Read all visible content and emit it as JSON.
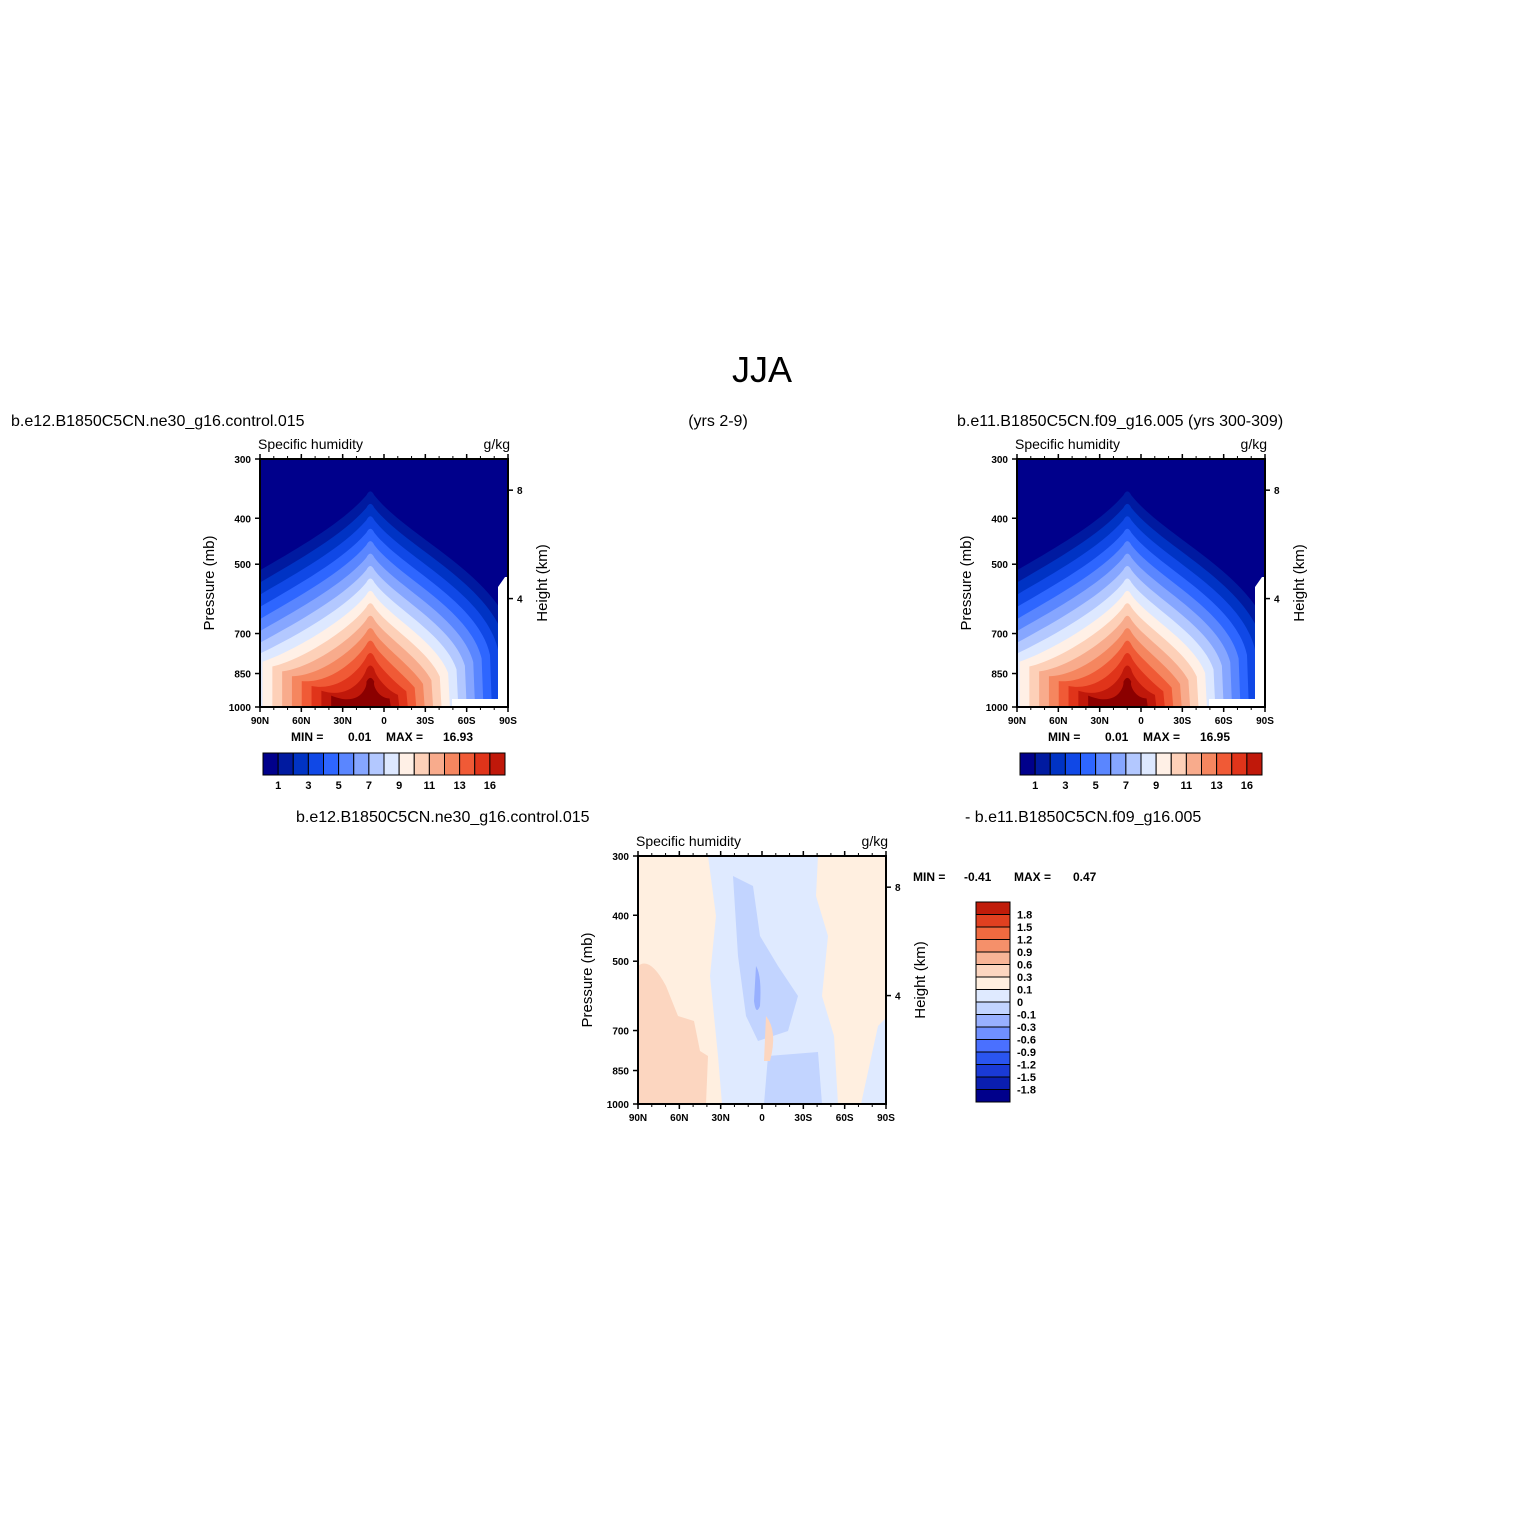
{
  "figure": {
    "title": "JJA",
    "top_left_label": "b.e12.B1850C5CN.ne30_g16.control.015",
    "top_center_label": "(yrs 2-9)",
    "top_right_label": "b.e11.B1850C5CN.f09_g16.005 (yrs 300-309)",
    "bottom_left_label": "b.e12.B1850C5CN.ne30_g16.control.015",
    "bottom_right_label": "- b.e11.B1850C5CN.f09_g16.005"
  },
  "colors": {
    "abs_palette": [
      "#00008b",
      "#001aa0",
      "#0033c4",
      "#1048e6",
      "#2e66ff",
      "#5a86ff",
      "#86a6ff",
      "#b3c8ff",
      "#dde8ff",
      "#fff0e6",
      "#fdd0b8",
      "#f8ab8c",
      "#f5865f",
      "#f05a36",
      "#e0341a",
      "#c0180a",
      "#8b0000"
    ],
    "diff_palette": [
      "#00008b",
      "#0a1eb0",
      "#1a3ad6",
      "#2a55f0",
      "#4a70ff",
      "#7090ff",
      "#98b0ff",
      "#c2d4ff",
      "#dfeaff",
      "#ffefe0",
      "#fcd6c0",
      "#f8b496",
      "#f5906a",
      "#f06a40",
      "#e04020",
      "#c01c0a",
      "#8b0000"
    ]
  },
  "chart_data": [
    {
      "type": "heatmap",
      "panel": "top-left",
      "title_left": "Specific humidity",
      "title_right": "g/kg",
      "ylabel": "Pressure (mb)",
      "y2label": "Height (km)",
      "x_ticks": [
        "90N",
        "60N",
        "30N",
        "0",
        "30S",
        "60S",
        "90S"
      ],
      "y_ticks": [
        "300",
        "400",
        "500",
        "700",
        "850",
        "1000"
      ],
      "y2_ticks": [
        "8",
        "4"
      ],
      "min_label": "MIN =",
      "min_value": "0.01",
      "max_label": "MAX =",
      "max_value": "16.93",
      "colorbar_labels": [
        "1",
        "3",
        "5",
        "7",
        "9",
        "11",
        "13",
        "16"
      ],
      "peak_lat": -10,
      "peak_value": 16.93
    },
    {
      "type": "heatmap",
      "panel": "top-right",
      "title_left": "Specific humidity",
      "title_right": "g/kg",
      "ylabel": "Pressure (mb)",
      "y2label": "Height (km)",
      "x_ticks": [
        "90N",
        "60N",
        "30N",
        "0",
        "30S",
        "60S",
        "90S"
      ],
      "y_ticks": [
        "300",
        "400",
        "500",
        "700",
        "850",
        "1000"
      ],
      "y2_ticks": [
        "8",
        "4"
      ],
      "min_label": "MIN =",
      "min_value": "0.01",
      "max_label": "MAX =",
      "max_value": "16.95",
      "colorbar_labels": [
        "1",
        "3",
        "5",
        "7",
        "9",
        "11",
        "13",
        "16"
      ],
      "peak_lat": -10,
      "peak_value": 16.95
    },
    {
      "type": "heatmap",
      "panel": "bottom-difference",
      "title_left": "Specific humidity",
      "title_right": "g/kg",
      "ylabel": "Pressure (mb)",
      "y2label": "Height (km)",
      "x_ticks": [
        "90N",
        "60N",
        "30N",
        "0",
        "30S",
        "60S",
        "90S"
      ],
      "y_ticks": [
        "300",
        "400",
        "500",
        "700",
        "850",
        "1000"
      ],
      "y2_ticks": [
        "8",
        "4"
      ],
      "min_label": "MIN =",
      "min_value": "-0.41",
      "max_label": "MAX =",
      "max_value": "0.47",
      "colorbar_labels": [
        "1.8",
        "1.5",
        "1.2",
        "0.9",
        "0.6",
        "0.3",
        "0.1",
        "0",
        "-0.1",
        "-0.3",
        "-0.6",
        "-0.9",
        "-1.2",
        "-1.5",
        "-1.8"
      ]
    }
  ]
}
